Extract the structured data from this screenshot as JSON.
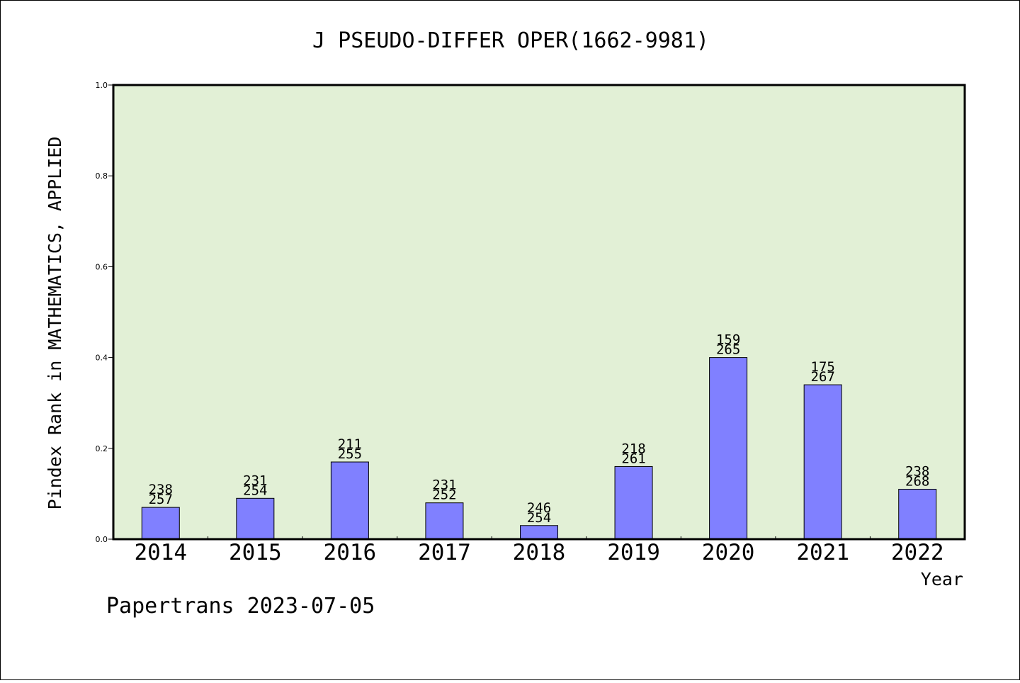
{
  "chart_data": {
    "type": "bar",
    "title": "J PSEUDO-DIFFER OPER(1662-9981)",
    "xlabel": "Year",
    "ylabel": "Pindex Rank in MATHEMATICS, APPLIED",
    "categories": [
      "2014",
      "2015",
      "2016",
      "2017",
      "2018",
      "2019",
      "2020",
      "2021",
      "2022"
    ],
    "values": [
      0.07,
      0.09,
      0.17,
      0.08,
      0.03,
      0.16,
      0.4,
      0.34,
      0.11
    ],
    "rank": [
      "238",
      "231",
      "211",
      "231",
      "246",
      "218",
      "159",
      "175",
      "238"
    ],
    "total": [
      "257",
      "254",
      "255",
      "252",
      "254",
      "261",
      "265",
      "267",
      "268"
    ],
    "ylim": [
      0,
      1.0
    ],
    "yticks": [
      "0.0",
      "0.2",
      "0.4",
      "0.6",
      "0.8",
      "1.0"
    ],
    "grid": false,
    "colors": {
      "plot_bg": "#e2f0d6",
      "bar": "#8080ff",
      "bar_stroke": "#000000"
    }
  },
  "footer": "Papertrans 2023-07-05"
}
